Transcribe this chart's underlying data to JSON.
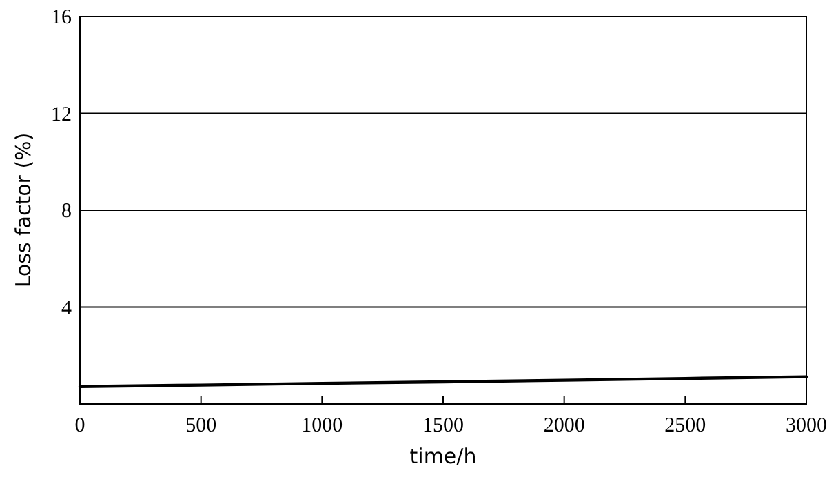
{
  "chart_data": {
    "type": "line",
    "xlabel": "time/h",
    "ylabel": "Loss factor (%)",
    "x": [
      0,
      500,
      1000,
      1500,
      2000,
      2500,
      3000
    ],
    "series": [
      {
        "color": "#000000",
        "values": [
          0.72,
          0.78,
          0.85,
          0.91,
          0.98,
          1.05,
          1.12
        ]
      }
    ],
    "xlim": [
      0,
      3000
    ],
    "xticks": [
      0,
      500,
      1000,
      1500,
      2000,
      2500,
      3000
    ],
    "ylim": [
      0,
      16
    ],
    "yticks": [
      4,
      8,
      12,
      16
    ],
    "grid": "y",
    "marker": "none",
    "line_style": "solid"
  }
}
